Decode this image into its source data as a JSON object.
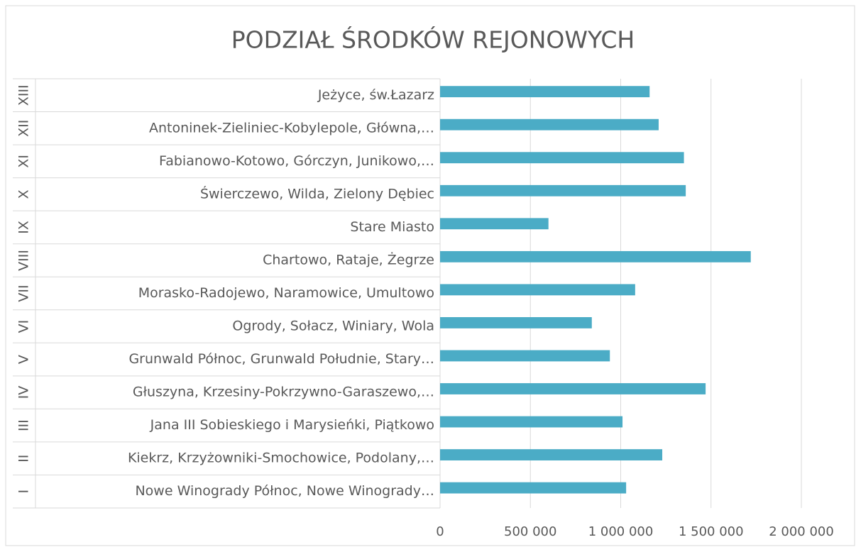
{
  "chart_data": {
    "type": "bar",
    "orientation": "horizontal",
    "title": "PODZIAŁ ŚRODKÓW REJONOWYCH",
    "groups": [
      "I",
      "II",
      "III",
      "IV",
      "V",
      "VI",
      "VII",
      "VIII",
      "IX",
      "X",
      "XI",
      "XII",
      "XIII"
    ],
    "categories": [
      "Nowe Winogrady Północ, Nowe Winogrady…",
      "Kiekrz, Krzyżowniki-Smochowice, Podolany,…",
      "Jana III Sobieskiego i Marysieńki, Piątkowo",
      "Głuszyna, Krzesiny-Pokrzywno-Garaszewo,…",
      "Grunwald Północ, Grunwald Południe, Stary…",
      "Ogrody, Sołacz, Winiary, Wola",
      "Morasko-Radojewo, Naramowice, Umultowo",
      "Chartowo, Rataje, Żegrze",
      "Stare Miasto",
      "Świerczewo, Wilda, Zielony Dębiec",
      "Fabianowo-Kotowo, Górczyn, Junikowo,…",
      "Antoninek-Zieliniec-Kobylepole, Główna,…",
      "Jeżyce, św.Łazarz"
    ],
    "values": [
      1030000,
      1230000,
      1010000,
      1470000,
      940000,
      840000,
      1080000,
      1720000,
      600000,
      1360000,
      1350000,
      1210000,
      1160000
    ],
    "color": "#4bacc6",
    "xlim": [
      0,
      2000000
    ],
    "xticks": [
      0,
      {
        "value": 500000,
        "label": "500 000"
      },
      {
        "value": 1000000,
        "label": "1 000 000"
      },
      {
        "value": 1500000,
        "label": "1 500 000"
      },
      {
        "value": 2000000,
        "label": "2 000 000"
      }
    ],
    "grid": true
  }
}
